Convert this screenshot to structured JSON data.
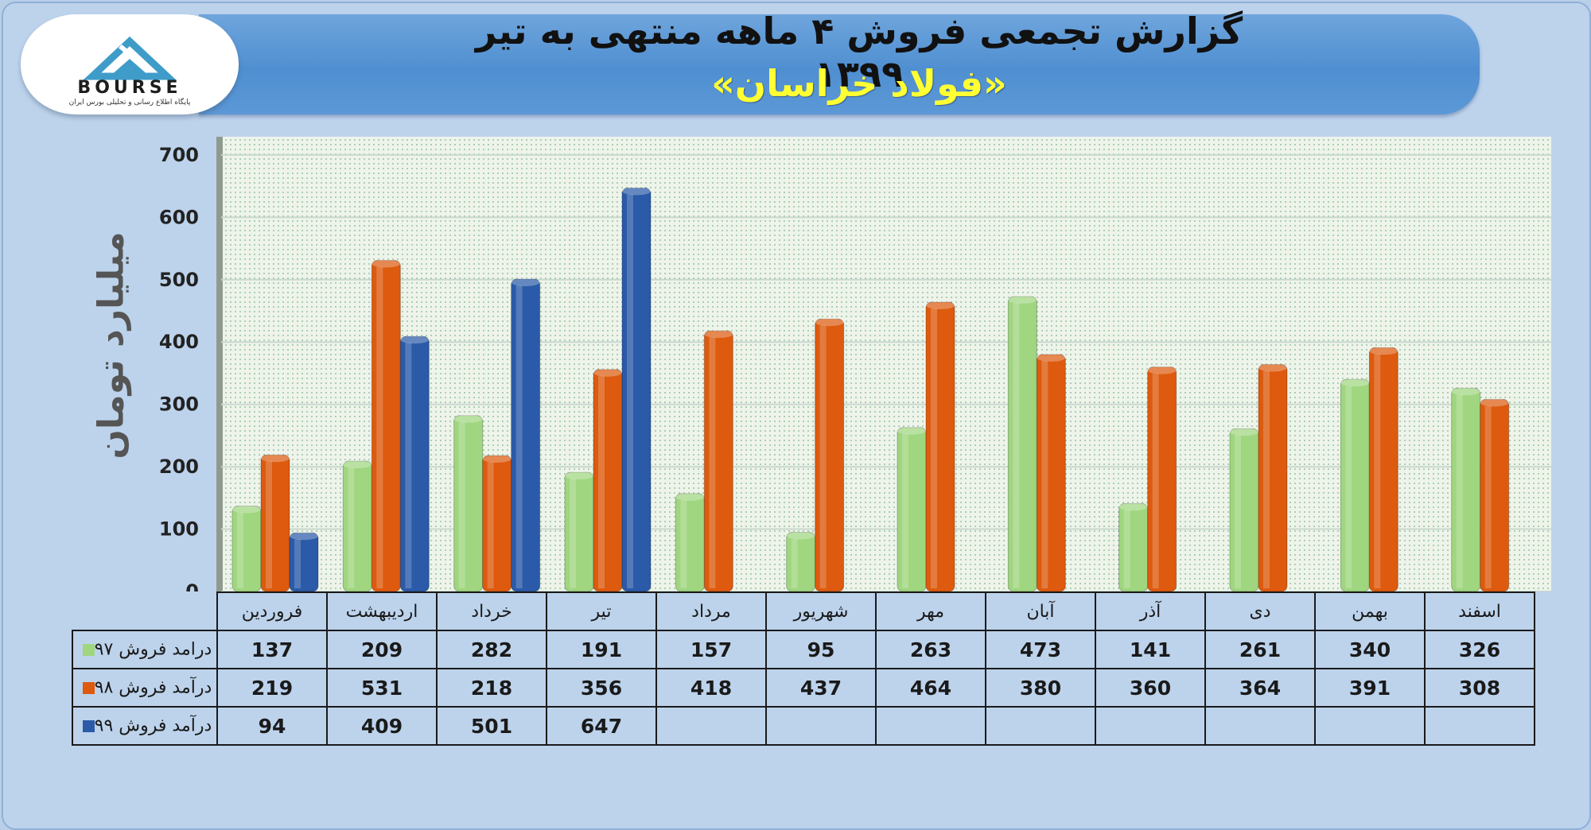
{
  "header": {
    "title": "گزارش تجمعی فروش ۴ ماهه منتهی به تیر ۱۳۹۹",
    "subtitle": "«فولاد خراسان»"
  },
  "logo": {
    "word": "BOURSE",
    "tagline": "پایگاه اطلاع رسانی و تحلیلی بورس ایران"
  },
  "chart_data": {
    "type": "bar",
    "ylabel": "میلیارد تومان",
    "ylim": [
      0,
      700
    ],
    "yticks": [
      0,
      100,
      200,
      300,
      400,
      500,
      600,
      700
    ],
    "grid": true,
    "legend": "table-left",
    "categories": [
      "فروردین",
      "اردیبهشت",
      "خرداد",
      "تیر",
      "مرداد",
      "شهریور",
      "مهر",
      "آبان",
      "آذر",
      "دی",
      "بهمن",
      "اسفند"
    ],
    "series": [
      {
        "name": "درامد فروش ۹۷",
        "color": "#9fd67f",
        "values": [
          137,
          209,
          282,
          191,
          157,
          95,
          263,
          473,
          141,
          261,
          340,
          326
        ]
      },
      {
        "name": "درآمد فروش ۹۸",
        "color": "#dd5a0e",
        "values": [
          219,
          531,
          218,
          356,
          418,
          437,
          464,
          380,
          360,
          364,
          391,
          308
        ]
      },
      {
        "name": "درآمد فروش ۹۹",
        "color": "#2a5aa8",
        "values": [
          94,
          409,
          501,
          647,
          null,
          null,
          null,
          null,
          null,
          null,
          null,
          null
        ]
      }
    ]
  }
}
